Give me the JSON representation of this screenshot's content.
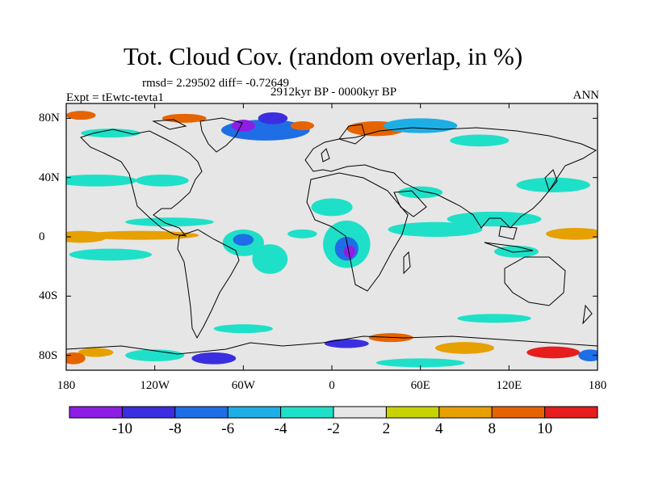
{
  "title": "Tot. Cloud Cov. (random overlap, in %)",
  "stats_line": "rmsd= 2.29502  diff= -0.72649",
  "period": "2912kyr BP - 0000kyr BP",
  "expt": "Expt = tEwtc-tevta1",
  "season": "ANN",
  "lat_ticks": [
    {
      "lat": 80,
      "label": "80N"
    },
    {
      "lat": 40,
      "label": "40N"
    },
    {
      "lat": 0,
      "label": "0"
    },
    {
      "lat": -40,
      "label": "40S"
    },
    {
      "lat": -80,
      "label": "80S"
    }
  ],
  "lon_ticks": [
    {
      "lon": -180,
      "label": "180"
    },
    {
      "lon": -120,
      "label": "120W"
    },
    {
      "lon": -60,
      "label": "60W"
    },
    {
      "lon": 0,
      "label": "0"
    },
    {
      "lon": 60,
      "label": "60E"
    },
    {
      "lon": 120,
      "label": "120E"
    },
    {
      "lon": 180,
      "label": "180"
    }
  ],
  "colorbar": {
    "colors": [
      "#8e1ee6",
      "#3a2ee0",
      "#1e6ee6",
      "#1eaee6",
      "#1ee0c8",
      "#e6e6e6",
      "#c8d200",
      "#e6a000",
      "#e66400",
      "#e61e1e"
    ],
    "labels": [
      "-10",
      "-8",
      "-6",
      "-4",
      "-2",
      "2",
      "4",
      "8",
      "10"
    ]
  },
  "map_colors": {
    "background": "#e6e6e6",
    "coast": "#000000"
  },
  "anomalies": [
    {
      "lon": -160,
      "lat": 38,
      "rx": 28,
      "ry": 4,
      "level": -2
    },
    {
      "lon": -115,
      "lat": 38,
      "rx": 18,
      "ry": 4,
      "level": -2
    },
    {
      "lon": -170,
      "lat": 0,
      "rx": 18,
      "ry": 4,
      "level": 4
    },
    {
      "lon": -130,
      "lat": 1,
      "rx": 40,
      "ry": 3,
      "level": 4
    },
    {
      "lon": -110,
      "lat": 10,
      "rx": 30,
      "ry": 3,
      "level": -2
    },
    {
      "lon": -150,
      "lat": -12,
      "rx": 28,
      "ry": 4,
      "level": -2
    },
    {
      "lon": -60,
      "lat": -4,
      "rx": 14,
      "ry": 9,
      "level": -2
    },
    {
      "lon": -60,
      "lat": -2,
      "rx": 7,
      "ry": 4,
      "level": -6
    },
    {
      "lon": -42,
      "lat": -15,
      "rx": 12,
      "ry": 10,
      "level": -2
    },
    {
      "lon": 10,
      "lat": -5,
      "rx": 16,
      "ry": 16,
      "level": -2
    },
    {
      "lon": 10,
      "lat": -8,
      "rx": 8,
      "ry": 8,
      "level": -6
    },
    {
      "lon": 12,
      "lat": -10,
      "rx": 4,
      "ry": 4,
      "level": -10
    },
    {
      "lon": 0,
      "lat": 20,
      "rx": 14,
      "ry": 6,
      "level": -2
    },
    {
      "lon": -20,
      "lat": 2,
      "rx": 10,
      "ry": 3,
      "level": -2
    },
    {
      "lon": 70,
      "lat": 5,
      "rx": 32,
      "ry": 5,
      "level": -2
    },
    {
      "lon": 110,
      "lat": 12,
      "rx": 32,
      "ry": 5,
      "level": -2
    },
    {
      "lon": 125,
      "lat": -10,
      "rx": 15,
      "ry": 4,
      "level": -2
    },
    {
      "lon": 165,
      "lat": 2,
      "rx": 20,
      "ry": 4,
      "level": 4
    },
    {
      "lon": 150,
      "lat": 35,
      "rx": 25,
      "ry": 5,
      "level": -2
    },
    {
      "lon": 60,
      "lat": 30,
      "rx": 15,
      "ry": 4,
      "level": -2
    },
    {
      "lon": 110,
      "lat": -55,
      "rx": 25,
      "ry": 3,
      "level": -2
    },
    {
      "lon": -60,
      "lat": -62,
      "rx": 20,
      "ry": 3,
      "level": -2
    },
    {
      "lon": -45,
      "lat": 72,
      "rx": 30,
      "ry": 7,
      "level": -6
    },
    {
      "lon": -60,
      "lat": 75,
      "rx": 8,
      "ry": 4,
      "level": -10
    },
    {
      "lon": -40,
      "lat": 80,
      "rx": 10,
      "ry": 4,
      "level": -8
    },
    {
      "lon": -20,
      "lat": 75,
      "rx": 8,
      "ry": 3,
      "level": 8
    },
    {
      "lon": 30,
      "lat": 73,
      "rx": 20,
      "ry": 5,
      "level": 8
    },
    {
      "lon": 60,
      "lat": 75,
      "rx": 25,
      "ry": 5,
      "level": -4
    },
    {
      "lon": 100,
      "lat": 65,
      "rx": 20,
      "ry": 4,
      "level": -2
    },
    {
      "lon": -100,
      "lat": 80,
      "rx": 15,
      "ry": 3,
      "level": 8
    },
    {
      "lon": -150,
      "lat": 70,
      "rx": 20,
      "ry": 3,
      "level": -2
    },
    {
      "lon": -170,
      "lat": 82,
      "rx": 10,
      "ry": 3,
      "level": 8
    },
    {
      "lon": -160,
      "lat": -78,
      "rx": 12,
      "ry": 3,
      "level": 4
    },
    {
      "lon": -120,
      "lat": -80,
      "rx": 20,
      "ry": 4,
      "level": -2
    },
    {
      "lon": -80,
      "lat": -82,
      "rx": 15,
      "ry": 4,
      "level": -8
    },
    {
      "lon": 10,
      "lat": -72,
      "rx": 15,
      "ry": 3,
      "level": -8
    },
    {
      "lon": 40,
      "lat": -68,
      "rx": 15,
      "ry": 3,
      "level": 8
    },
    {
      "lon": 90,
      "lat": -75,
      "rx": 20,
      "ry": 4,
      "level": 4
    },
    {
      "lon": 150,
      "lat": -78,
      "rx": 18,
      "ry": 4,
      "level": 10
    },
    {
      "lon": 175,
      "lat": -80,
      "rx": 8,
      "ry": 4,
      "level": -6
    },
    {
      "lon": -175,
      "lat": -82,
      "rx": 8,
      "ry": 4,
      "level": 8
    },
    {
      "lon": 60,
      "lat": -85,
      "rx": 30,
      "ry": 3,
      "level": -2
    }
  ]
}
